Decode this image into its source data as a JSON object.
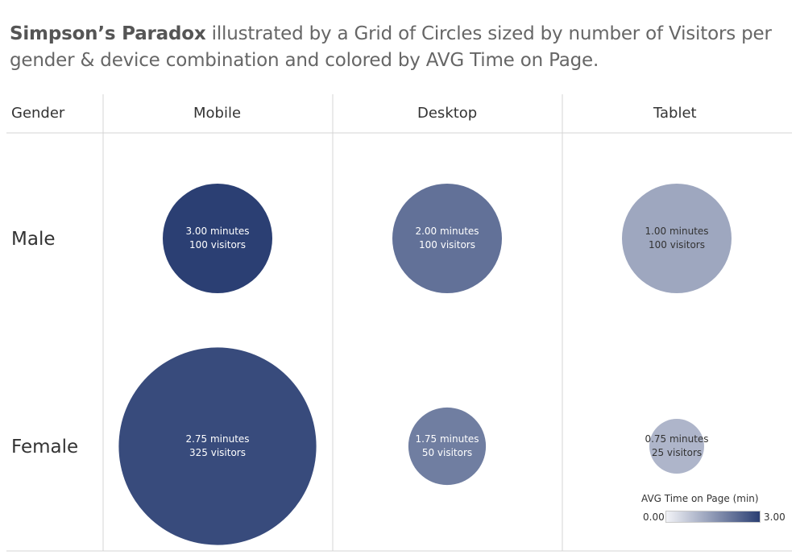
{
  "title": {
    "bold": "Simpson’s Paradox",
    "rest": " illustrated by a Grid of Circles sized by number of Visitors per gender & device combination and colored by AVG Time on Page."
  },
  "columns": {
    "row_header": "Gender",
    "devices": [
      "Mobile",
      "Desktop",
      "Tablet"
    ]
  },
  "rows": [
    "Male",
    "Female"
  ],
  "legend": {
    "title": "AVG Time on Page (min)",
    "min_label": "0.00",
    "max_label": "3.00",
    "color_min": "#f2f3f7",
    "color_max": "#2b3f73"
  },
  "chart_data": {
    "type": "scatter",
    "title": "Simpson’s Paradox illustrated by a Grid of Circles sized by number of Visitors per gender & device combination and colored by AVG Time on Page.",
    "x_categories": [
      "Mobile",
      "Desktop",
      "Tablet"
    ],
    "y_categories": [
      "Male",
      "Female"
    ],
    "size_measure": "visitors",
    "color_measure": "AVG Time on Page (min)",
    "color_range": [
      0.0,
      3.0
    ],
    "points": [
      {
        "gender": "Male",
        "device": "Mobile",
        "minutes": 3.0,
        "visitors": 100,
        "minutes_label": "3.00 minutes",
        "visitors_label": "100 visitors"
      },
      {
        "gender": "Male",
        "device": "Desktop",
        "minutes": 2.0,
        "visitors": 100,
        "minutes_label": "2.00 minutes",
        "visitors_label": "100 visitors"
      },
      {
        "gender": "Male",
        "device": "Tablet",
        "minutes": 1.0,
        "visitors": 100,
        "minutes_label": "1.00 minutes",
        "visitors_label": "100 visitors"
      },
      {
        "gender": "Female",
        "device": "Mobile",
        "minutes": 2.75,
        "visitors": 325,
        "minutes_label": "2.75 minutes",
        "visitors_label": "325 visitors"
      },
      {
        "gender": "Female",
        "device": "Desktop",
        "minutes": 1.75,
        "visitors": 50,
        "minutes_label": "1.75 minutes",
        "visitors_label": "50 visitors"
      },
      {
        "gender": "Female",
        "device": "Tablet",
        "minutes": 0.75,
        "visitors": 25,
        "minutes_label": "0.75 minutes",
        "visitors_label": "25 visitors"
      }
    ]
  }
}
